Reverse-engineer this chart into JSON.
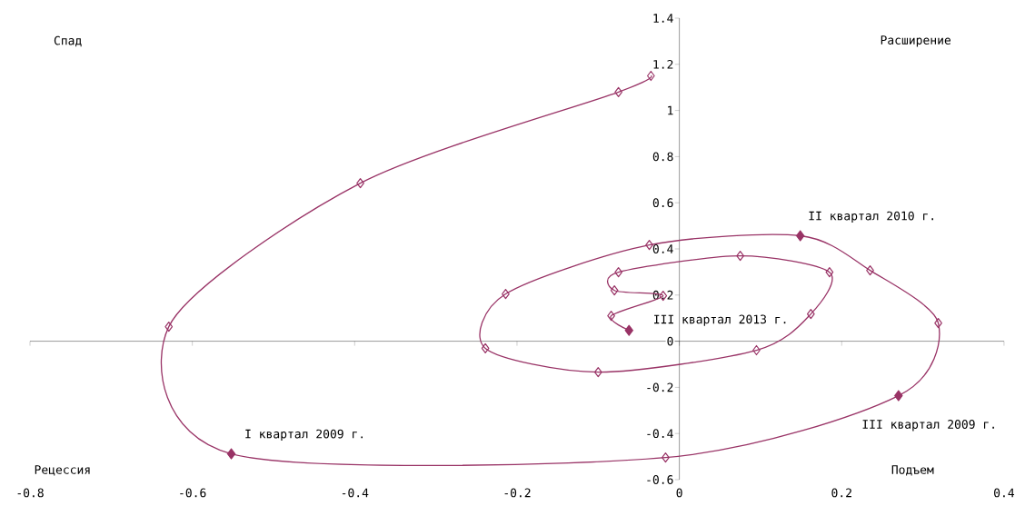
{
  "chart_data": {
    "type": "line",
    "xlim": [
      -0.8,
      0.4
    ],
    "ylim": [
      -0.6,
      1.4
    ],
    "xticks": [
      -0.8,
      -0.6,
      -0.4,
      -0.2,
      0,
      0.2,
      0.4
    ],
    "yticks": [
      -0.6,
      -0.4,
      -0.2,
      0,
      0.2,
      0.4,
      0.6,
      0.8,
      1,
      1.2,
      1.4
    ],
    "line_style": "solid",
    "series": [
      {
        "type": "line",
        "color": "#993366",
        "marker": "diamond",
        "x": [
          -0.035,
          -0.075,
          -0.393,
          -0.629,
          -0.552,
          -0.017,
          0.27,
          0.319,
          0.235,
          0.149,
          -0.037,
          -0.214,
          -0.239,
          -0.1,
          0.095,
          0.162,
          0.185,
          0.075,
          -0.075,
          -0.08,
          -0.02,
          -0.084,
          -0.062
        ],
        "values": [
          1.15,
          1.08,
          0.685,
          0.063,
          -0.488,
          -0.504,
          -0.236,
          0.079,
          0.307,
          0.457,
          0.417,
          0.205,
          -0.031,
          -0.134,
          -0.039,
          0.118,
          0.299,
          0.37,
          0.299,
          0.22,
          0.197,
          0.11,
          0.047
        ]
      },
      {
        "type": "scatter",
        "color": "#993366",
        "marker": "diamond",
        "x": [
          -0.552,
          0.27,
          0.149,
          -0.062
        ],
        "values": [
          -0.488,
          -0.236,
          0.457,
          0.047
        ]
      }
    ],
    "annotations": [
      "Спад",
      "Расширение",
      "Рецессия",
      "Подъем",
      {
        "text": "I квартал 2009 г.",
        "x": -0.552,
        "y": -0.488
      },
      {
        "text": "III квартал 2009 г.",
        "x": 0.27,
        "y": -0.236
      },
      {
        "text": "II квартал 2010 г.",
        "x": 0.149,
        "y": 0.457
      },
      {
        "text": "III квартал 2013 г.",
        "x": -0.062,
        "y": 0.047
      }
    ]
  }
}
